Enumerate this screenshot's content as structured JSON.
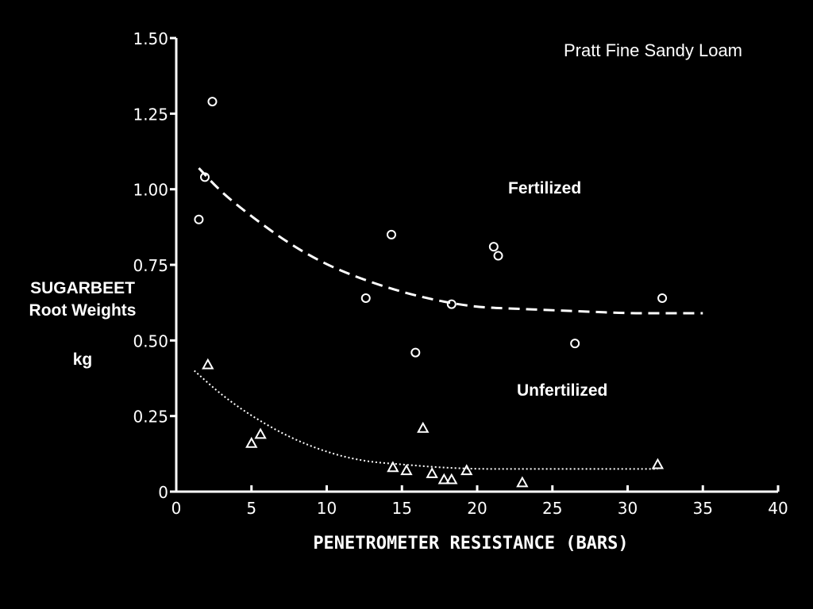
{
  "chart_data": {
    "type": "scatter",
    "subtitle": "Pratt Fine Sandy Loam",
    "ylabel": [
      "SUGARBEET",
      "Root Weights"
    ],
    "yunit": "kg",
    "xlabel": "PENETROMETER RESISTANCE (BARS)",
    "xlim": [
      0,
      40
    ],
    "ylim": [
      0,
      1.5
    ],
    "xticks": [
      0,
      5,
      10,
      15,
      20,
      25,
      30,
      35,
      40
    ],
    "yticks": [
      0,
      0.25,
      0.5,
      0.75,
      1.0,
      1.25,
      1.5
    ],
    "xtick_labels": [
      "0",
      "5",
      "10",
      "15",
      "20",
      "25",
      "30",
      "35",
      "40"
    ],
    "ytick_labels": [
      "0",
      "0.25",
      "0.50",
      "0.75",
      "1.00",
      "1.25",
      "1.50"
    ],
    "grid": false,
    "series": [
      {
        "name": "Fertilized",
        "marker": "circle",
        "points": [
          [
            2.4,
            1.29
          ],
          [
            1.9,
            1.04
          ],
          [
            1.5,
            0.9
          ],
          [
            14.3,
            0.85
          ],
          [
            21.1,
            0.81
          ],
          [
            21.4,
            0.78
          ],
          [
            12.6,
            0.64
          ],
          [
            18.3,
            0.62
          ],
          [
            32.3,
            0.64
          ],
          [
            15.9,
            0.46
          ],
          [
            26.5,
            0.49
          ]
        ],
        "trend": {
          "style": "dashed",
          "x": [
            1.5,
            3,
            5,
            7.5,
            10,
            12.5,
            15,
            17.5,
            20,
            22.5,
            25,
            27.5,
            30,
            32.5,
            35
          ],
          "y": [
            1.07,
            0.99,
            0.91,
            0.82,
            0.75,
            0.7,
            0.66,
            0.63,
            0.61,
            0.605,
            0.6,
            0.595,
            0.59,
            0.59,
            0.59
          ]
        }
      },
      {
        "name": "Unfertilized",
        "marker": "triangle",
        "points": [
          [
            2.1,
            0.42
          ],
          [
            5.0,
            0.16
          ],
          [
            5.6,
            0.19
          ],
          [
            14.4,
            0.08
          ],
          [
            15.3,
            0.07
          ],
          [
            16.4,
            0.21
          ],
          [
            17.0,
            0.06
          ],
          [
            17.8,
            0.04
          ],
          [
            18.3,
            0.04
          ],
          [
            19.3,
            0.07
          ],
          [
            23.0,
            0.03
          ],
          [
            32.0,
            0.09
          ]
        ],
        "trend": {
          "style": "dotted",
          "x": [
            1.2,
            3,
            5,
            7.5,
            10,
            12.5,
            15,
            17.5,
            20,
            22.5,
            25,
            27.5,
            30,
            32
          ],
          "y": [
            0.4,
            0.32,
            0.25,
            0.18,
            0.13,
            0.1,
            0.09,
            0.08,
            0.075,
            0.075,
            0.075,
            0.075,
            0.075,
            0.075
          ]
        }
      }
    ]
  }
}
